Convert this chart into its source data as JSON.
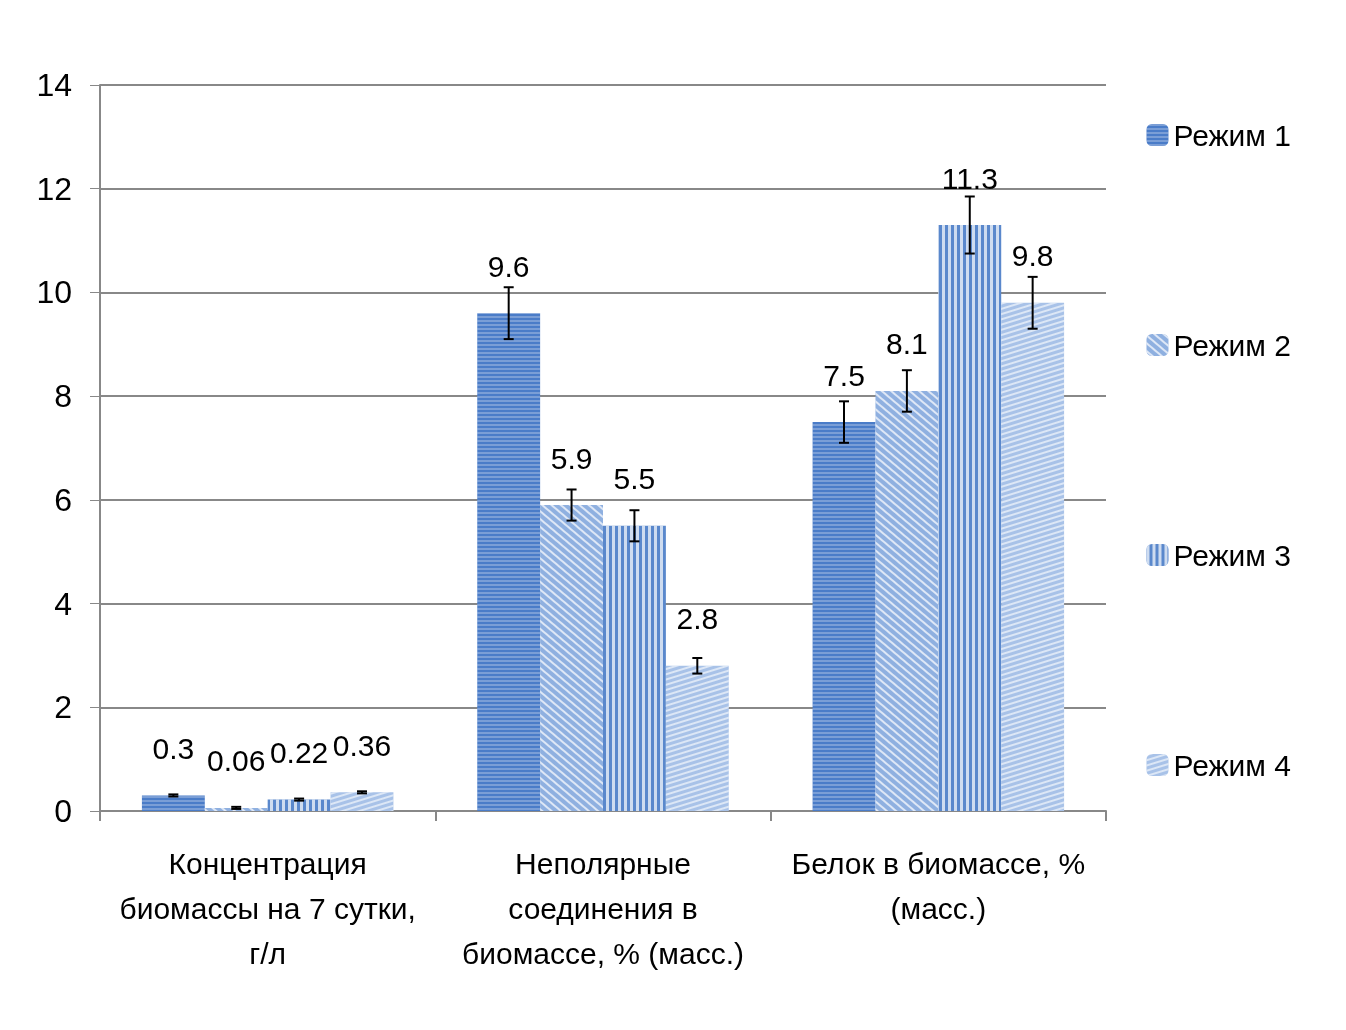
{
  "chart_data": {
    "type": "bar",
    "categories": [
      "Концентрация биомассы на 7 сутки, г/л",
      "Неполярные соединения в биомассе, % (масс.)",
      "Белок в биомассе, % (масс.)"
    ],
    "series": [
      {
        "name": "Режим 1",
        "color": "#4a7cc8",
        "values": [
          0.3,
          9.6,
          7.5
        ],
        "errors": [
          0.02,
          0.5,
          0.4
        ]
      },
      {
        "name": "Режим 2",
        "color": "#8fb0e0",
        "values": [
          0.06,
          5.9,
          8.1
        ],
        "errors": [
          0.02,
          0.3,
          0.4
        ]
      },
      {
        "name": "Режим 3",
        "color": "#5a88cc",
        "values": [
          0.22,
          5.5,
          11.3
        ],
        "errors": [
          0.02,
          0.3,
          0.55
        ]
      },
      {
        "name": "Режим 4",
        "color": "#a8c2e8",
        "values": [
          0.36,
          2.8,
          9.8
        ],
        "errors": [
          0.02,
          0.15,
          0.5
        ]
      }
    ],
    "ylim": [
      0,
      14
    ],
    "yticks": [
      0,
      2,
      4,
      6,
      8,
      10,
      12,
      14
    ],
    "grid": "y",
    "legend": "right",
    "data_labels": true
  }
}
